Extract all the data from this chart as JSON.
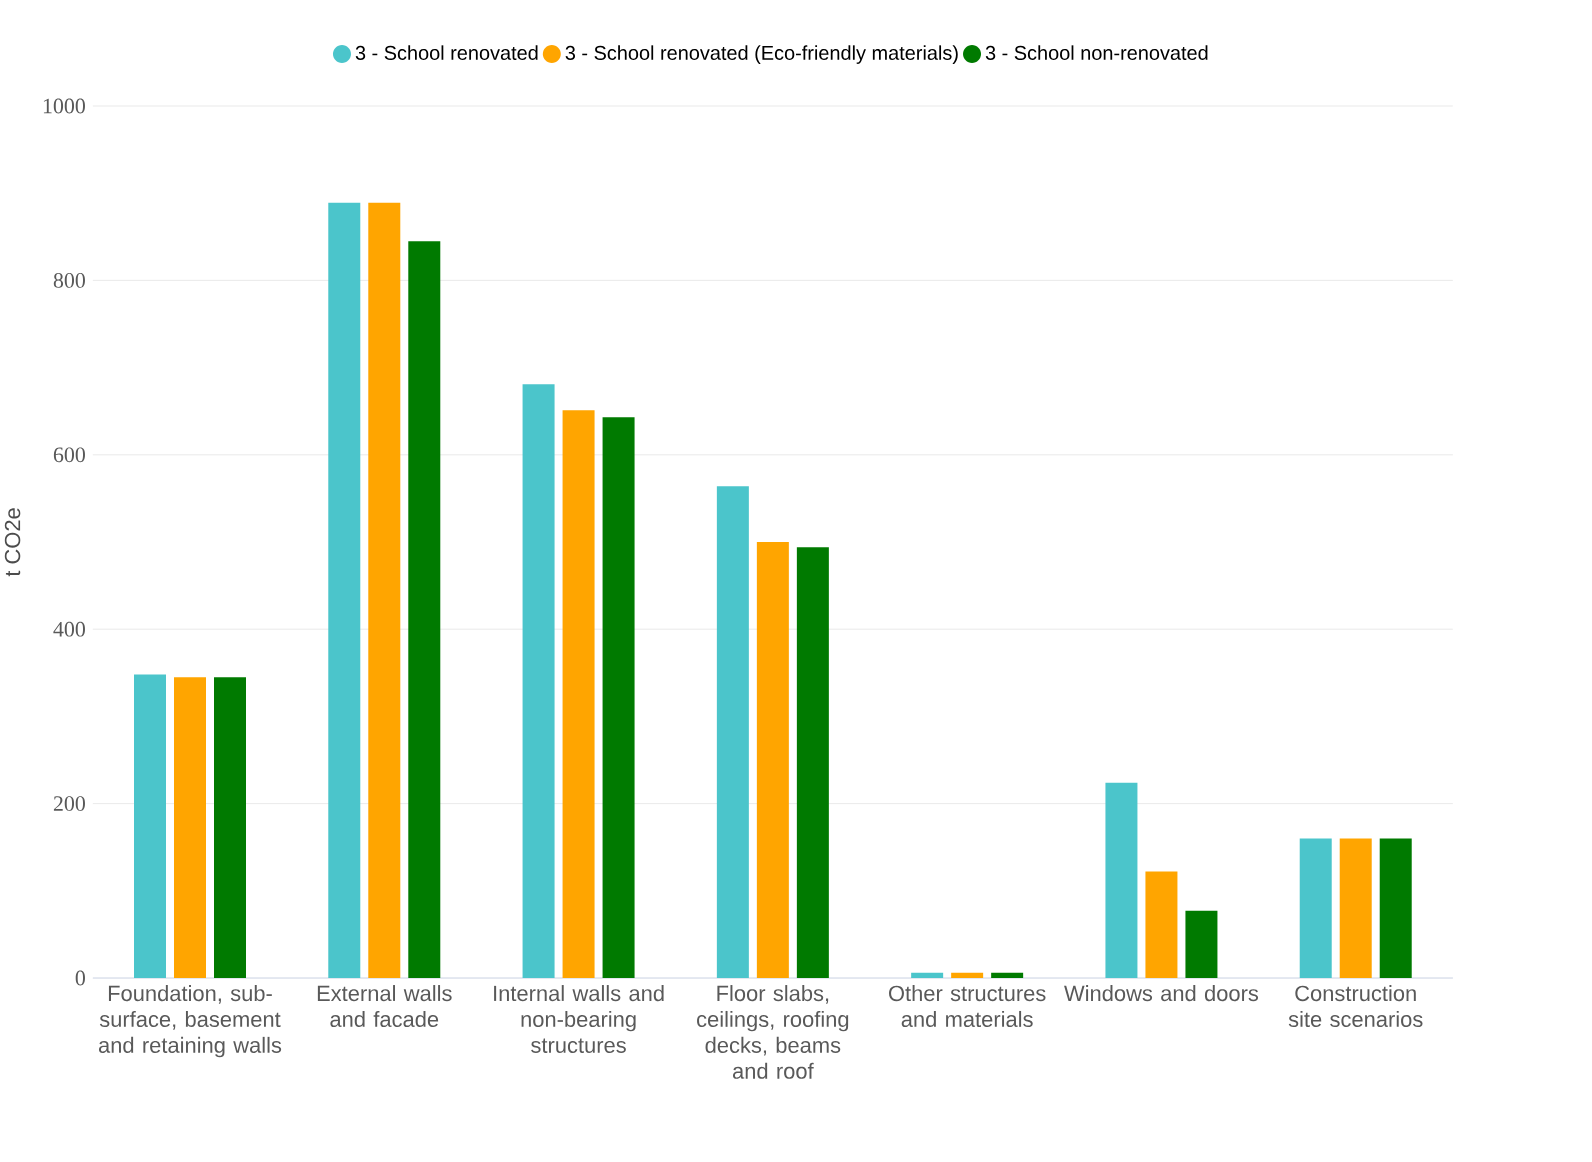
{
  "chart_data": {
    "type": "bar",
    "ylabel": "t CO2e",
    "categories": [
      "Foundation, sub-surface, basement and retaining walls",
      "External walls and facade",
      "Internal walls and non-bearing structures",
      "Floor slabs, ceilings, roofing decks, beams and roof",
      "Other structures and materials",
      "Windows and doors",
      "Construction site scenarios"
    ],
    "series": [
      {
        "name": "3 - School renovated",
        "color": "#4bc5cb",
        "values": [
          348,
          889,
          681,
          564,
          6,
          224,
          160
        ]
      },
      {
        "name": "3 - School renovated (Eco-friendly materials)",
        "color": "#ffa500",
        "values": [
          345,
          889,
          651,
          500,
          6,
          122,
          160
        ]
      },
      {
        "name": "3 - School non-renovated",
        "color": "#007a00",
        "values": [
          345,
          845,
          643,
          494,
          6,
          77,
          160
        ]
      }
    ],
    "ylim": [
      0,
      1000
    ],
    "yticks": [
      0,
      200,
      400,
      600,
      800,
      1000
    ],
    "grid": "y",
    "legend": "top"
  }
}
